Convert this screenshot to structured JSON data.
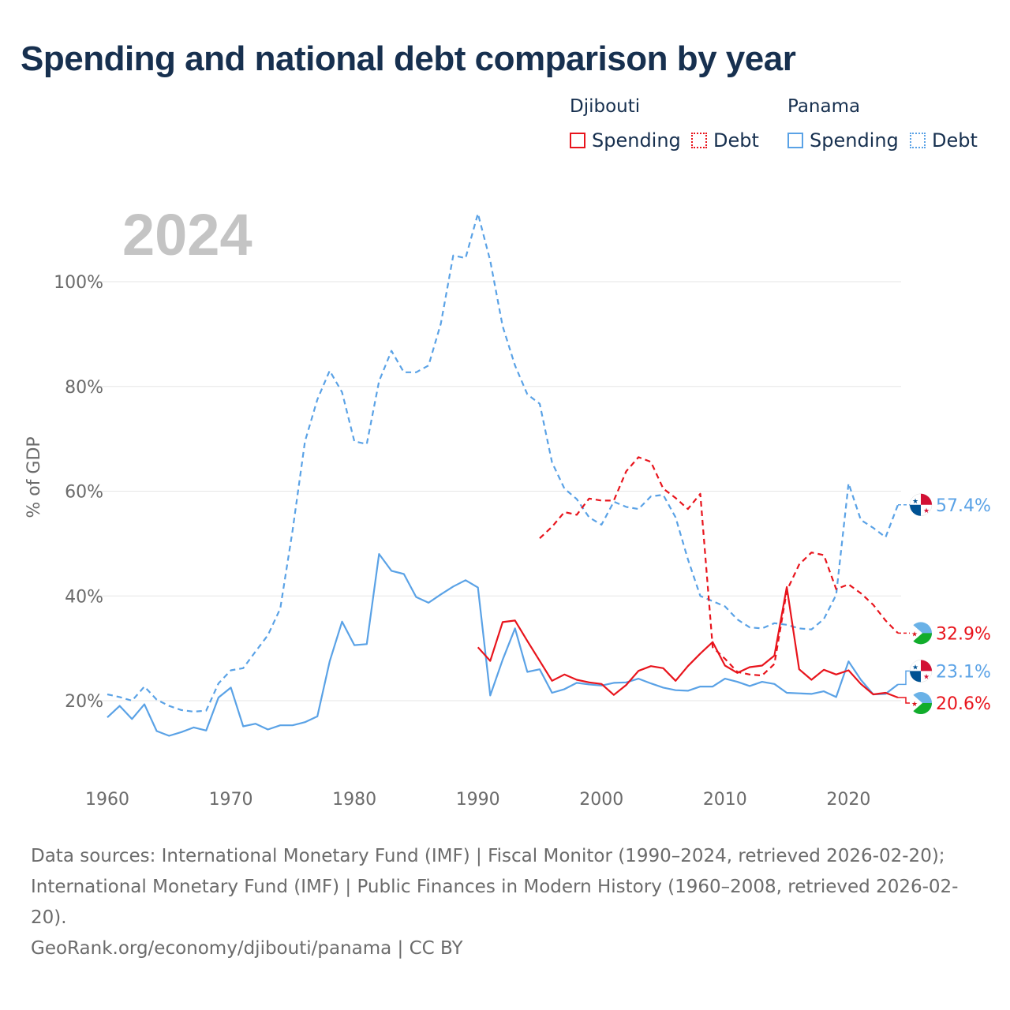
{
  "title": "Spending and national debt comparison by year",
  "legend": {
    "groups": [
      {
        "country": "Djibouti",
        "items": [
          {
            "label": "Spending",
            "style": "solid",
            "color": "#e8141c"
          },
          {
            "label": "Debt",
            "style": "dotted",
            "color": "#e8141c"
          }
        ]
      },
      {
        "country": "Panama",
        "items": [
          {
            "label": "Spending",
            "style": "solid",
            "color": "#5aa2e6"
          },
          {
            "label": "Debt",
            "style": "dotted",
            "color": "#5aa2e6"
          }
        ]
      }
    ]
  },
  "colors": {
    "djibouti": "#e8141c",
    "panama": "#5aa2e6",
    "title": "#17304f",
    "axis_text": "#6b6b6b",
    "year_watermark": "#c4c4c4"
  },
  "chart_data": {
    "type": "line",
    "year_label": "2024",
    "ylabel": "% of GDP",
    "xlim": [
      1960,
      2024
    ],
    "ylim": [
      10,
      113
    ],
    "xticks": [
      1960,
      1970,
      1980,
      1990,
      2000,
      2010,
      2020
    ],
    "yticks": [
      20,
      40,
      60,
      80,
      100
    ],
    "ytick_labels": [
      "20%",
      "40%",
      "60%",
      "80%",
      "100%"
    ],
    "series": [
      {
        "name": "Panama Debt",
        "country": "Panama",
        "metric": "Debt",
        "dash": "dashed",
        "color": "#5aa2e6",
        "start_year": 1960,
        "values": [
          21.2,
          20.7,
          20.0,
          22.7,
          20.2,
          19.0,
          18.2,
          17.9,
          18.1,
          23.3,
          25.8,
          26.2,
          29.4,
          32.5,
          37.6,
          52.5,
          69.5,
          77.5,
          83.0,
          78.9,
          69.5,
          69.0,
          81.0,
          86.8,
          82.7,
          82.7,
          84.0,
          92.0,
          105.0,
          104.5,
          113.0,
          104.0,
          91.5,
          84.0,
          78.5,
          76.7,
          65.5,
          60.5,
          58.5,
          55.0,
          53.6,
          58.0,
          57.0,
          56.6,
          59.0,
          59.3,
          55.0,
          47.0,
          40.0,
          39.0,
          38.0,
          35.5,
          34.0,
          33.8,
          34.8,
          34.5,
          33.8,
          33.6,
          35.6,
          40.2,
          61.5,
          54.5,
          53.0,
          51.2,
          57.4
        ],
        "end_label": "57.4%"
      },
      {
        "name": "Panama Spending",
        "country": "Panama",
        "metric": "Spending",
        "dash": "solid",
        "color": "#5aa2e6",
        "start_year": 1960,
        "values": [
          16.8,
          19.0,
          16.5,
          19.3,
          14.2,
          13.3,
          14.0,
          14.9,
          14.3,
          20.6,
          22.5,
          15.1,
          15.6,
          14.5,
          15.3,
          15.3,
          15.9,
          17.0,
          27.5,
          35.1,
          30.6,
          30.8,
          48.0,
          44.8,
          44.2,
          39.8,
          38.7,
          40.3,
          41.8,
          43.0,
          41.6,
          21.0,
          27.8,
          33.8,
          25.5,
          26.0,
          21.5,
          22.2,
          23.4,
          23.1,
          22.9,
          23.4,
          23.5,
          24.2,
          23.3,
          22.5,
          22.0,
          21.9,
          22.7,
          22.7,
          24.2,
          23.6,
          22.8,
          23.6,
          23.2,
          21.5,
          21.4,
          21.3,
          21.8,
          20.7,
          27.5,
          24.0,
          21.2,
          21.3,
          23.1
        ],
        "end_label": "23.1%"
      },
      {
        "name": "Djibouti Debt",
        "country": "Djibouti",
        "metric": "Debt",
        "dash": "dashed",
        "color": "#e8141c",
        "start_year": 1995,
        "values": [
          51.0,
          53.2,
          56.0,
          55.5,
          58.6,
          58.2,
          58.2,
          63.8,
          66.5,
          65.6,
          60.5,
          58.7,
          56.6,
          59.5,
          30.2,
          28.0,
          25.5,
          25.0,
          24.8,
          27.0,
          41.0,
          46.0,
          48.3,
          47.8,
          41.3,
          42.2,
          40.5,
          38.3,
          35.3,
          32.9
        ],
        "end_label": "32.9%"
      },
      {
        "name": "Djibouti Spending",
        "country": "Djibouti",
        "metric": "Spending",
        "dash": "solid",
        "color": "#e8141c",
        "start_year": 1990,
        "values": [
          30.2,
          27.6,
          35.0,
          35.3,
          31.4,
          27.6,
          23.8,
          25.0,
          24.0,
          23.5,
          23.2,
          21.1,
          23.0,
          25.7,
          26.6,
          26.2,
          23.8,
          26.6,
          29.0,
          31.2,
          26.7,
          25.3,
          26.4,
          26.7,
          28.6,
          41.7,
          26.0,
          24.0,
          25.9,
          25.0,
          25.8,
          23.2,
          21.2,
          21.5,
          20.6
        ],
        "end_label": "20.6%"
      }
    ]
  },
  "footer": {
    "line1": "Data sources: International Monetary Fund (IMF) | Fiscal Monitor (1990–2024, retrieved 2026-02-20); International Monetary Fund (IMF) | Public Finances in Modern History (1960–2008, retrieved 2026-02-20).",
    "line2": "GeoRank.org/economy/djibouti/panama | CC BY"
  }
}
